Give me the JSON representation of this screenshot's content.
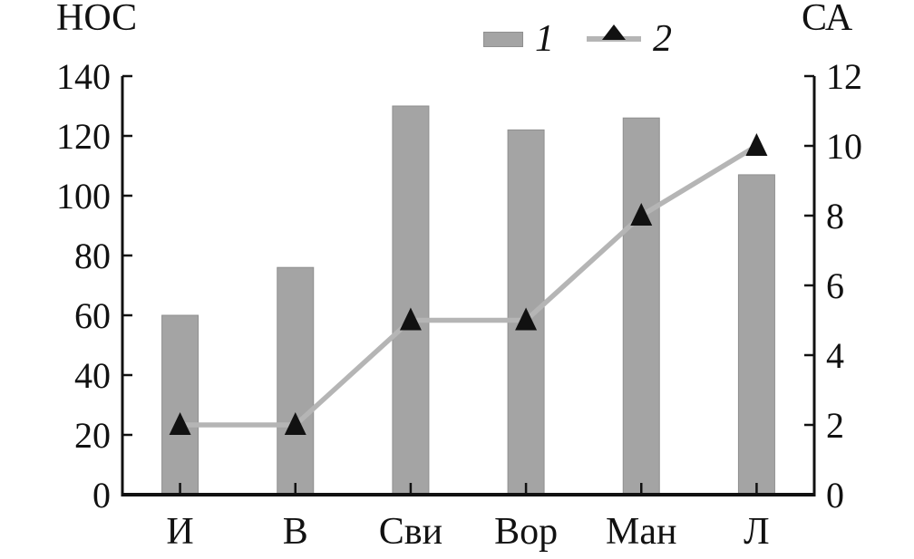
{
  "chart_data": {
    "type": "bar",
    "subtype": "bar-and-line-dual-axis",
    "title": "",
    "categories": [
      "И",
      "В",
      "Сви",
      "Вор",
      "Ман",
      "Л"
    ],
    "series": [
      {
        "name": "1",
        "type": "bar",
        "axis": "left",
        "values": [
          60,
          76,
          130,
          122,
          126,
          107
        ],
        "color": "#a4a4a4",
        "edge_color": "#8f8f8f"
      },
      {
        "name": "2",
        "type": "line",
        "axis": "right",
        "values": [
          2,
          2,
          5,
          5,
          8,
          10
        ],
        "line_color": "#b5b5b5",
        "marker": "triangle-up",
        "marker_color": "#111111"
      }
    ],
    "left_axis": {
      "title": "НОС",
      "min": 0,
      "max": 140,
      "tick_step": 20,
      "ticks": [
        0,
        20,
        40,
        60,
        80,
        100,
        120,
        140
      ]
    },
    "right_axis": {
      "title": "СА",
      "min": 0,
      "max": 12,
      "tick_step": 2,
      "ticks": [
        0,
        2,
        4,
        6,
        8,
        10,
        12
      ]
    },
    "xlabel": "",
    "grid": false,
    "legend": [
      {
        "label": "1",
        "symbol": "gray-bar-swatch"
      },
      {
        "label": "2",
        "symbol": "line-with-triangle-marker"
      }
    ],
    "legend_position": "top-center",
    "axis_color": "#111111"
  }
}
